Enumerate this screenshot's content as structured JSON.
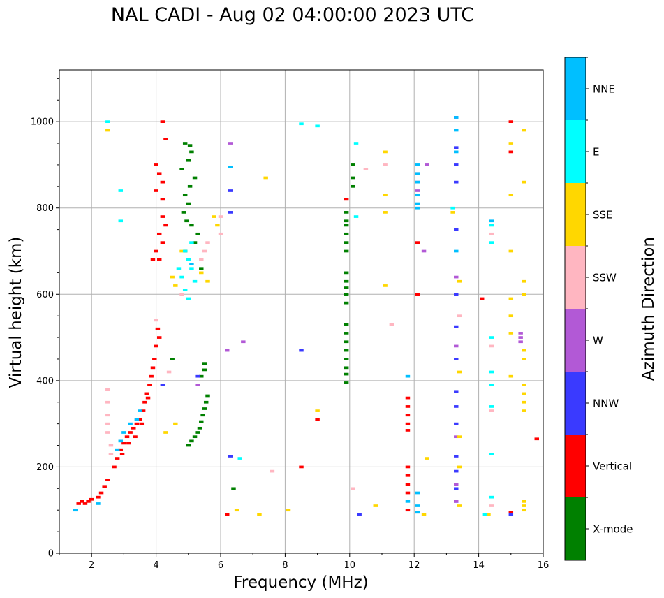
{
  "chart_data": {
    "type": "scatter",
    "title": "NAL CADI - Aug 02 04:00:00 2023 UTC",
    "xlabel": "Frequency (MHz)",
    "ylabel": "Virtual height (km)",
    "xlim": [
      1,
      16
    ],
    "ylim": [
      0,
      1120
    ],
    "xticks": [
      "2",
      "4",
      "6",
      "8",
      "10",
      "12",
      "14",
      "16"
    ],
    "yticks": [
      "0",
      "200",
      "400",
      "600",
      "800",
      "1000"
    ],
    "grid": true,
    "colorbar": {
      "label": "Azimuth Direction",
      "categories": [
        "X-mode",
        "Vertical",
        "NNW",
        "W",
        "SSW",
        "SSE",
        "E",
        "NNE"
      ],
      "colors": [
        "#008000",
        "#ff0000",
        "#3a3aff",
        "#b259d6",
        "#ffb6c1",
        "#ffd700",
        "#00ffff",
        "#00bfff"
      ]
    },
    "series": [
      {
        "name": "X-mode",
        "color": "#008000",
        "points": [
          [
            4.9,
            950
          ],
          [
            5.05,
            945
          ],
          [
            5.1,
            930
          ],
          [
            5.0,
            910
          ],
          [
            4.8,
            890
          ],
          [
            5.2,
            870
          ],
          [
            5.05,
            850
          ],
          [
            4.9,
            830
          ],
          [
            5.0,
            810
          ],
          [
            4.85,
            790
          ],
          [
            4.95,
            770
          ],
          [
            5.1,
            760
          ],
          [
            5.3,
            740
          ],
          [
            5.2,
            720
          ],
          [
            4.9,
            700
          ],
          [
            5.0,
            680
          ],
          [
            5.4,
            660
          ],
          [
            5.5,
            440
          ],
          [
            5.5,
            425
          ],
          [
            5.4,
            410
          ],
          [
            5.6,
            365
          ],
          [
            5.55,
            350
          ],
          [
            5.5,
            335
          ],
          [
            5.45,
            320
          ],
          [
            5.4,
            305
          ],
          [
            5.35,
            290
          ],
          [
            5.3,
            280
          ],
          [
            5.2,
            270
          ],
          [
            5.1,
            260
          ],
          [
            5.0,
            250
          ],
          [
            4.5,
            450
          ],
          [
            9.9,
            790
          ],
          [
            9.9,
            770
          ],
          [
            9.9,
            760
          ],
          [
            9.9,
            740
          ],
          [
            9.9,
            720
          ],
          [
            9.9,
            700
          ],
          [
            9.9,
            650
          ],
          [
            9.9,
            630
          ],
          [
            9.9,
            615
          ],
          [
            9.9,
            600
          ],
          [
            9.9,
            580
          ],
          [
            9.9,
            530
          ],
          [
            9.9,
            510
          ],
          [
            9.9,
            490
          ],
          [
            9.9,
            470
          ],
          [
            9.9,
            450
          ],
          [
            9.9,
            430
          ],
          [
            9.9,
            415
          ],
          [
            9.9,
            395
          ],
          [
            10.1,
            870
          ],
          [
            10.1,
            850
          ],
          [
            10.1,
            900
          ],
          [
            6.4,
            150
          ]
        ]
      },
      {
        "name": "Vertical",
        "color": "#ff0000",
        "points": [
          [
            1.6,
            115
          ],
          [
            1.7,
            120
          ],
          [
            1.8,
            115
          ],
          [
            1.9,
            120
          ],
          [
            2.0,
            125
          ],
          [
            2.2,
            130
          ],
          [
            2.3,
            140
          ],
          [
            2.4,
            155
          ],
          [
            2.5,
            170
          ],
          [
            2.7,
            200
          ],
          [
            2.8,
            220
          ],
          [
            2.9,
            240
          ],
          [
            3.0,
            255
          ],
          [
            3.1,
            270
          ],
          [
            3.2,
            280
          ],
          [
            3.3,
            290
          ],
          [
            3.4,
            300
          ],
          [
            3.5,
            310
          ],
          [
            3.6,
            330
          ],
          [
            3.65,
            350
          ],
          [
            3.7,
            370
          ],
          [
            3.8,
            390
          ],
          [
            3.85,
            410
          ],
          [
            3.9,
            430
          ],
          [
            3.95,
            450
          ],
          [
            4.0,
            480
          ],
          [
            4.1,
            500
          ],
          [
            4.05,
            520
          ],
          [
            3.75,
            360
          ],
          [
            3.55,
            300
          ],
          [
            3.35,
            270
          ],
          [
            3.15,
            255
          ],
          [
            2.95,
            230
          ],
          [
            4.0,
            900
          ],
          [
            4.1,
            880
          ],
          [
            4.2,
            860
          ],
          [
            4.0,
            840
          ],
          [
            4.2,
            820
          ],
          [
            4.2,
            780
          ],
          [
            4.3,
            760
          ],
          [
            4.1,
            740
          ],
          [
            4.2,
            720
          ],
          [
            4.0,
            700
          ],
          [
            4.1,
            680
          ],
          [
            3.9,
            680
          ],
          [
            4.2,
            1000
          ],
          [
            4.3,
            960
          ],
          [
            6.2,
            90
          ],
          [
            8.5,
            200
          ],
          [
            9.0,
            310
          ],
          [
            9.9,
            820
          ],
          [
            12.1,
            720
          ],
          [
            12.1,
            600
          ],
          [
            11.8,
            360
          ],
          [
            11.8,
            340
          ],
          [
            11.8,
            320
          ],
          [
            11.8,
            300
          ],
          [
            11.8,
            285
          ],
          [
            11.8,
            200
          ],
          [
            11.8,
            180
          ],
          [
            11.8,
            160
          ],
          [
            11.8,
            140
          ],
          [
            11.8,
            100
          ],
          [
            14.1,
            590
          ],
          [
            15.0,
            1000
          ],
          [
            15.0,
            930
          ],
          [
            15.0,
            95
          ],
          [
            15.8,
            265
          ]
        ]
      },
      {
        "name": "NNW",
        "color": "#3a3aff",
        "points": [
          [
            4.2,
            390
          ],
          [
            5.3,
            410
          ],
          [
            6.3,
            840
          ],
          [
            6.3,
            790
          ],
          [
            6.3,
            225
          ],
          [
            10.3,
            90
          ],
          [
            13.3,
            1010
          ],
          [
            13.3,
            940
          ],
          [
            13.3,
            900
          ],
          [
            13.3,
            860
          ],
          [
            13.3,
            750
          ],
          [
            13.3,
            600
          ],
          [
            13.3,
            525
          ],
          [
            13.3,
            450
          ],
          [
            13.3,
            375
          ],
          [
            13.3,
            340
          ],
          [
            13.3,
            300
          ],
          [
            13.3,
            225
          ],
          [
            13.3,
            190
          ],
          [
            13.3,
            150
          ],
          [
            13.3,
            120
          ],
          [
            15.0,
            90
          ],
          [
            8.5,
            470
          ]
        ]
      },
      {
        "name": "W",
        "color": "#b259d6",
        "points": [
          [
            5.3,
            390
          ],
          [
            6.2,
            470
          ],
          [
            6.3,
            950
          ],
          [
            6.7,
            490
          ],
          [
            12.1,
            880
          ],
          [
            12.1,
            860
          ],
          [
            12.1,
            840
          ],
          [
            12.3,
            700
          ],
          [
            12.4,
            900
          ],
          [
            13.3,
            640
          ],
          [
            13.3,
            480
          ],
          [
            13.3,
            270
          ],
          [
            13.3,
            160
          ],
          [
            13.3,
            120
          ],
          [
            15.3,
            510
          ],
          [
            15.3,
            500
          ],
          [
            15.3,
            490
          ]
        ]
      },
      {
        "name": "SSW",
        "color": "#ffb6c1",
        "points": [
          [
            2.5,
            380
          ],
          [
            2.5,
            350
          ],
          [
            2.5,
            320
          ],
          [
            2.5,
            300
          ],
          [
            2.5,
            280
          ],
          [
            2.6,
            250
          ],
          [
            2.6,
            230
          ],
          [
            4.0,
            540
          ],
          [
            4.4,
            420
          ],
          [
            4.8,
            600
          ],
          [
            5.5,
            700
          ],
          [
            5.6,
            720
          ],
          [
            5.4,
            680
          ],
          [
            6.0,
            780
          ],
          [
            6.0,
            740
          ],
          [
            7.6,
            190
          ],
          [
            10.1,
            150
          ],
          [
            10.5,
            890
          ],
          [
            11.1,
            900
          ],
          [
            11.3,
            530
          ],
          [
            13.4,
            550
          ],
          [
            14.4,
            740
          ],
          [
            14.4,
            480
          ],
          [
            14.4,
            330
          ],
          [
            14.4,
            110
          ]
        ]
      },
      {
        "name": "SSE",
        "color": "#ffd700",
        "points": [
          [
            2.5,
            980
          ],
          [
            4.3,
            280
          ],
          [
            4.6,
            300
          ],
          [
            4.5,
            640
          ],
          [
            4.6,
            620
          ],
          [
            4.8,
            700
          ],
          [
            5.4,
            650
          ],
          [
            5.6,
            630
          ],
          [
            5.8,
            780
          ],
          [
            5.9,
            760
          ],
          [
            6.5,
            100
          ],
          [
            7.2,
            90
          ],
          [
            7.4,
            870
          ],
          [
            8.1,
            100
          ],
          [
            9.0,
            330
          ],
          [
            10.8,
            110
          ],
          [
            11.1,
            930
          ],
          [
            11.1,
            830
          ],
          [
            11.1,
            790
          ],
          [
            11.1,
            620
          ],
          [
            12.3,
            90
          ],
          [
            12.4,
            220
          ],
          [
            13.2,
            790
          ],
          [
            13.4,
            630
          ],
          [
            13.4,
            420
          ],
          [
            13.4,
            270
          ],
          [
            13.4,
            200
          ],
          [
            13.4,
            110
          ],
          [
            14.3,
            90
          ],
          [
            15.0,
            950
          ],
          [
            15.0,
            830
          ],
          [
            15.0,
            700
          ],
          [
            15.0,
            590
          ],
          [
            15.0,
            550
          ],
          [
            15.0,
            510
          ],
          [
            15.0,
            410
          ],
          [
            15.4,
            980
          ],
          [
            15.4,
            860
          ],
          [
            15.4,
            630
          ],
          [
            15.4,
            600
          ],
          [
            15.4,
            470
          ],
          [
            15.4,
            450
          ],
          [
            15.4,
            390
          ],
          [
            15.4,
            370
          ],
          [
            15.4,
            350
          ],
          [
            15.4,
            330
          ],
          [
            15.4,
            120
          ],
          [
            15.4,
            110
          ],
          [
            15.4,
            100
          ]
        ]
      },
      {
        "name": "E",
        "color": "#00ffff",
        "points": [
          [
            2.5,
            1000
          ],
          [
            2.9,
            840
          ],
          [
            2.9,
            770
          ],
          [
            4.7,
            660
          ],
          [
            4.8,
            640
          ],
          [
            4.9,
            610
          ],
          [
            5.0,
            590
          ],
          [
            5.0,
            680
          ],
          [
            5.1,
            660
          ],
          [
            5.1,
            720
          ],
          [
            4.9,
            700
          ],
          [
            5.2,
            630
          ],
          [
            6.6,
            220
          ],
          [
            8.5,
            995
          ],
          [
            9.0,
            990
          ],
          [
            10.2,
            950
          ],
          [
            10.2,
            780
          ],
          [
            13.2,
            800
          ],
          [
            14.4,
            760
          ],
          [
            14.4,
            720
          ],
          [
            14.4,
            500
          ],
          [
            14.4,
            420
          ],
          [
            14.4,
            390
          ],
          [
            14.4,
            340
          ],
          [
            14.4,
            230
          ],
          [
            14.4,
            130
          ],
          [
            14.2,
            90
          ]
        ]
      },
      {
        "name": "NNE",
        "color": "#00bfff",
        "points": [
          [
            1.5,
            100
          ],
          [
            2.2,
            115
          ],
          [
            2.8,
            240
          ],
          [
            3.0,
            280
          ],
          [
            3.2,
            300
          ],
          [
            3.4,
            310
          ],
          [
            3.5,
            330
          ],
          [
            2.9,
            260
          ],
          [
            5.1,
            670
          ],
          [
            6.3,
            895
          ],
          [
            12.1,
            900
          ],
          [
            12.1,
            880
          ],
          [
            12.1,
            860
          ],
          [
            12.1,
            830
          ],
          [
            12.1,
            810
          ],
          [
            12.1,
            800
          ],
          [
            11.8,
            410
          ],
          [
            11.8,
            120
          ],
          [
            12.1,
            140
          ],
          [
            12.1,
            110
          ],
          [
            12.1,
            95
          ],
          [
            13.3,
            1010
          ],
          [
            13.3,
            980
          ],
          [
            13.3,
            930
          ],
          [
            13.3,
            700
          ],
          [
            14.4,
            770
          ]
        ]
      }
    ]
  }
}
